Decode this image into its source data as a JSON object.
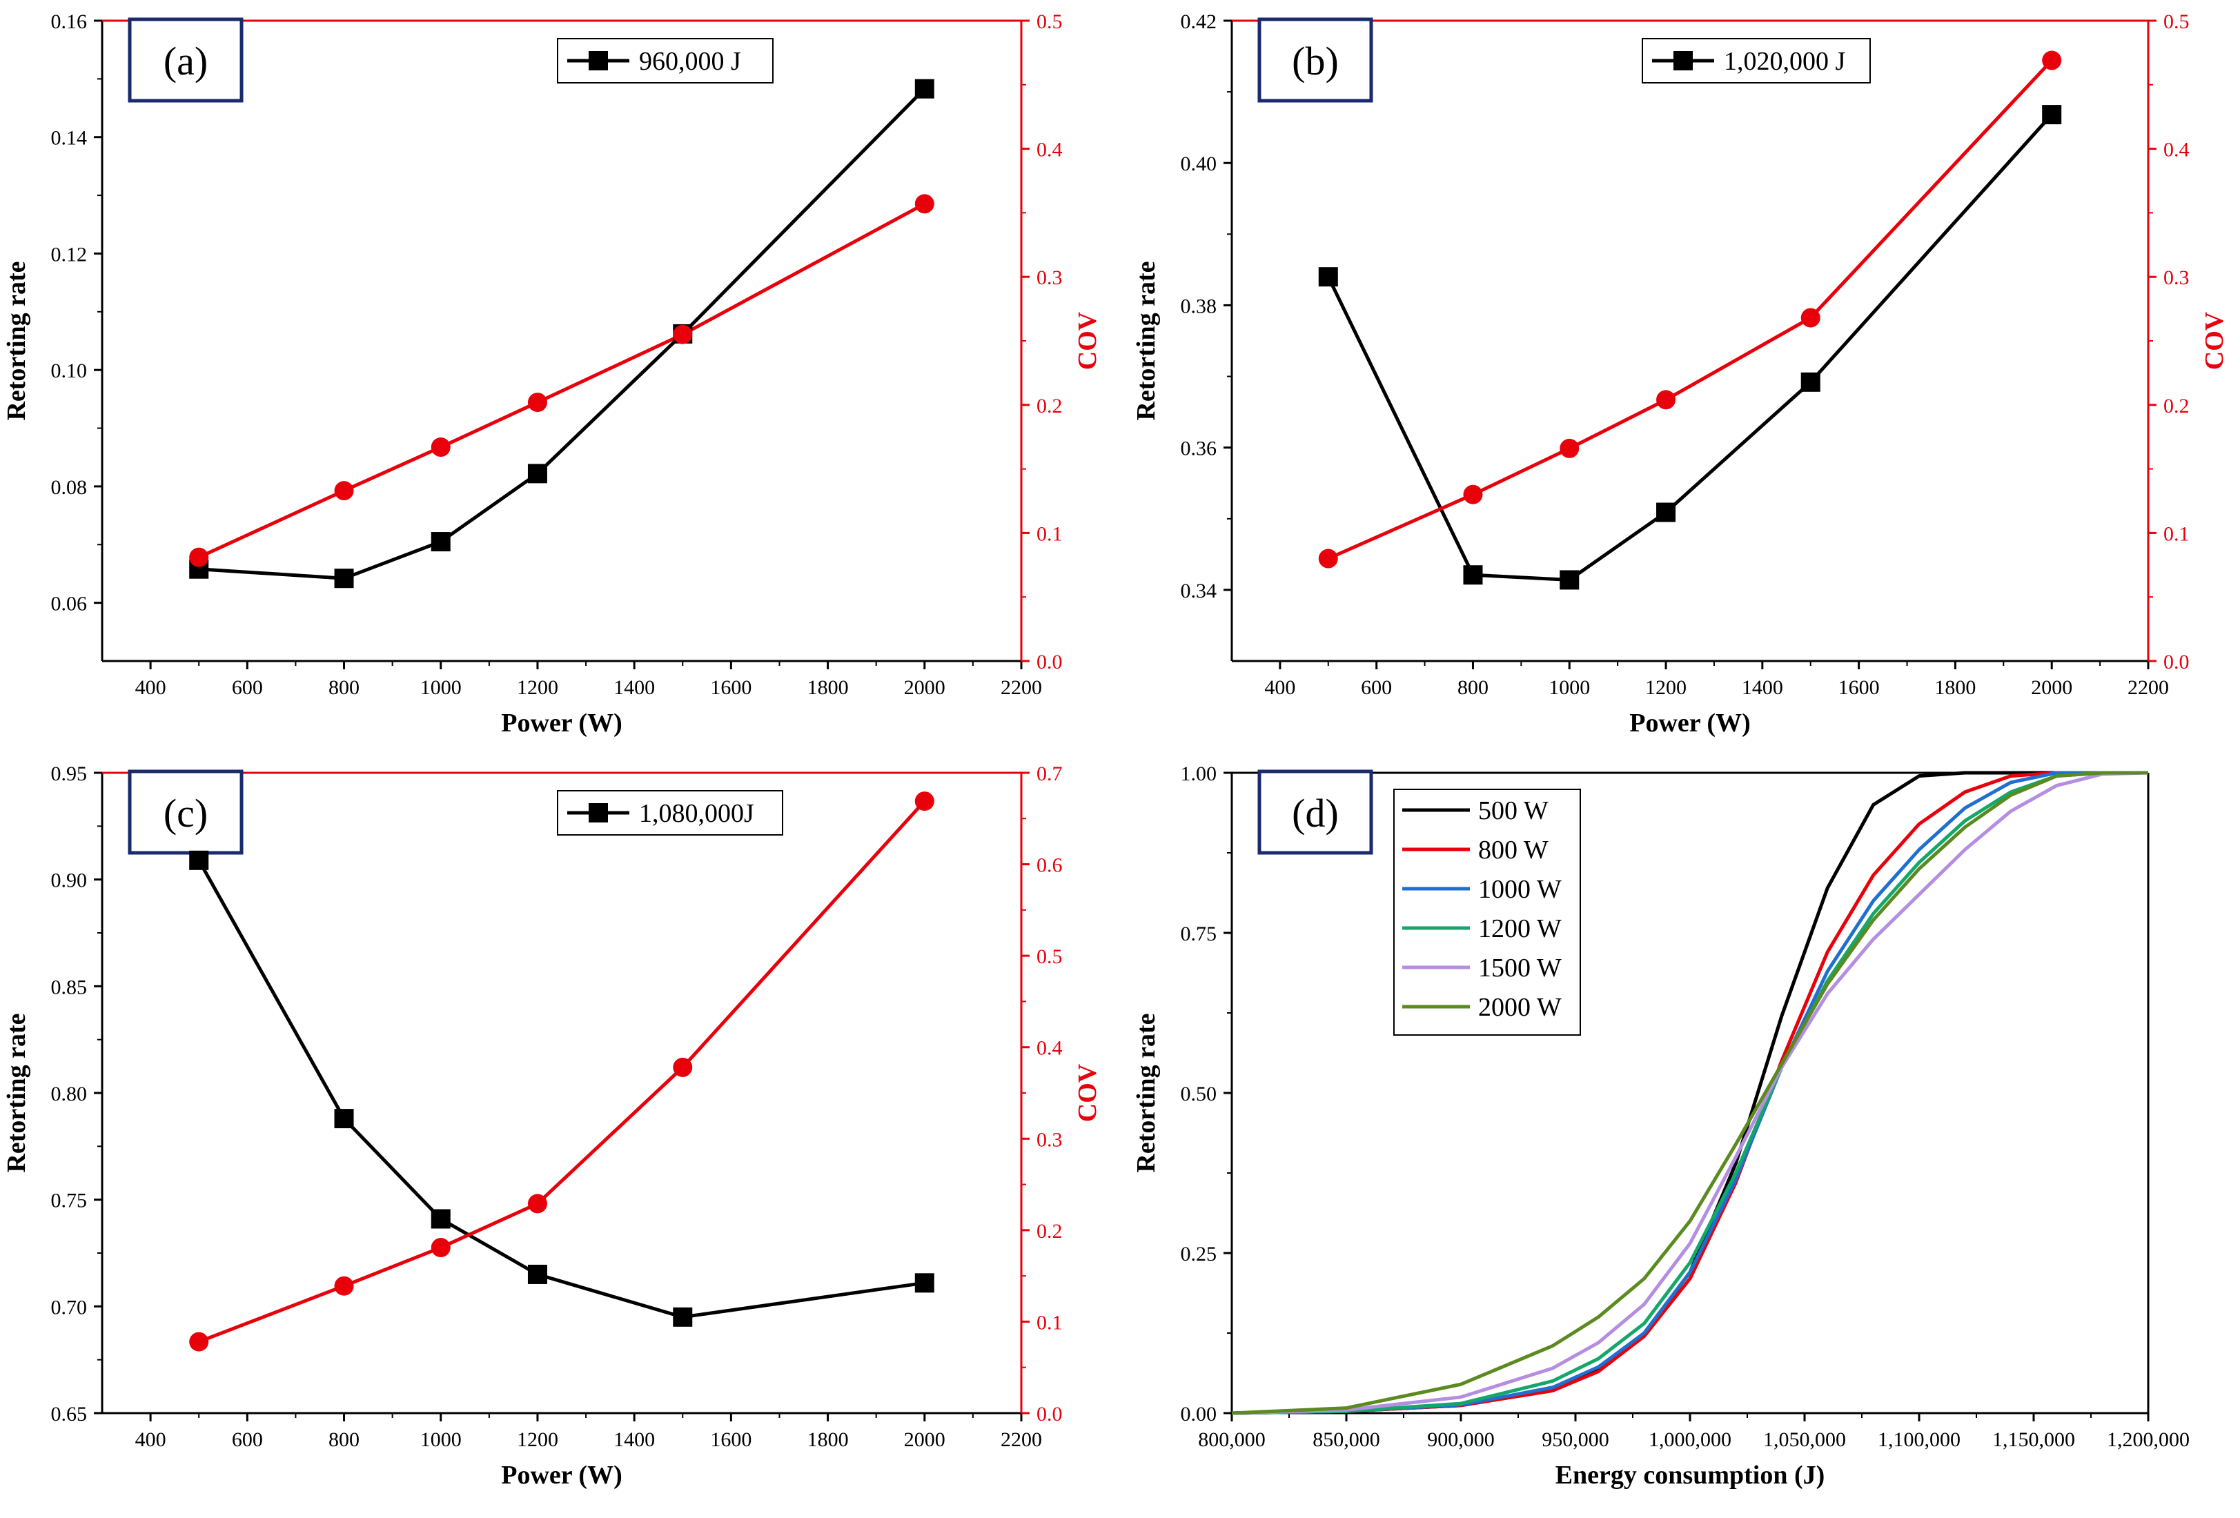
{
  "colors": {
    "black": "#000000",
    "red": "#e8000b",
    "tag_border": "#1a2a6c",
    "series_500": "#000000",
    "series_800": "#e8000b",
    "series_1000": "#1f6fd1",
    "series_1200": "#13a86a",
    "series_1500": "#b48ee0",
    "series_2000": "#5b8a1f"
  },
  "chart_data": [
    {
      "id": "a",
      "type": "line",
      "tag": "(a)",
      "xlabel": "Power (W)",
      "ylabel": "Retorting rate",
      "y2label": "COV",
      "xlim": [
        300,
        2200
      ],
      "xticks": [
        400,
        600,
        800,
        1000,
        1200,
        1400,
        1600,
        1800,
        2000,
        2200
      ],
      "xtick_labels": [
        "400",
        "600",
        "800",
        "1000",
        "1200",
        "1400",
        "1600",
        "1800",
        "2000",
        "2200"
      ],
      "ylim": [
        0.05,
        0.16
      ],
      "yticks": [
        0.06,
        0.08,
        0.1,
        0.12,
        0.14,
        0.16
      ],
      "ytick_labels": [
        "0.06",
        "0.08",
        "0.10",
        "0.12",
        "0.14",
        "0.16"
      ],
      "y2lim": [
        0.0,
        0.5
      ],
      "y2ticks": [
        0.0,
        0.1,
        0.2,
        0.3,
        0.4,
        0.5
      ],
      "y2tick_labels": [
        "0.0",
        "0.1",
        "0.2",
        "0.3",
        "0.4",
        "0.5"
      ],
      "legend_position": "top-center",
      "legend": "960,000 J",
      "x": [
        500,
        800,
        1000,
        1200,
        1500,
        2000
      ],
      "series": [
        {
          "name": "960,000 J",
          "axis": "left",
          "marker": "square",
          "values": [
            0.0658,
            0.0642,
            0.0705,
            0.0822,
            0.1062,
            0.1483
          ]
        },
        {
          "name": "COV",
          "axis": "right",
          "marker": "circle",
          "values": [
            0.081,
            0.133,
            0.167,
            0.202,
            0.255,
            0.357
          ]
        }
      ]
    },
    {
      "id": "b",
      "type": "line",
      "tag": "(b)",
      "xlabel": "Power (W)",
      "ylabel": "Retorting rate",
      "y2label": "COV",
      "xlim": [
        300,
        2200
      ],
      "xticks": [
        400,
        600,
        800,
        1000,
        1200,
        1400,
        1600,
        1800,
        2000,
        2200
      ],
      "xtick_labels": [
        "400",
        "600",
        "800",
        "1000",
        "1200",
        "1400",
        "1600",
        "1800",
        "2000",
        "2200"
      ],
      "ylim": [
        0.33,
        0.42
      ],
      "yticks": [
        0.34,
        0.36,
        0.38,
        0.4,
        0.42
      ],
      "ytick_labels": [
        "0.34",
        "0.36",
        "0.38",
        "0.40",
        "0.42"
      ],
      "y2lim": [
        0.0,
        0.5
      ],
      "y2ticks": [
        0.0,
        0.1,
        0.2,
        0.3,
        0.4,
        0.5
      ],
      "y2tick_labels": [
        "0.0",
        "0.1",
        "0.2",
        "0.3",
        "0.4",
        "0.5"
      ],
      "legend_position": "top-center",
      "legend": "1,020,000 J",
      "x": [
        500,
        800,
        1000,
        1200,
        1500,
        2000
      ],
      "series": [
        {
          "name": "1,020,000 J",
          "axis": "left",
          "marker": "square",
          "values": [
            0.384,
            0.3421,
            0.3414,
            0.3509,
            0.3692,
            0.4068
          ]
        },
        {
          "name": "COV",
          "axis": "right",
          "marker": "circle",
          "values": [
            0.08,
            0.13,
            0.166,
            0.204,
            0.268,
            0.469
          ]
        }
      ]
    },
    {
      "id": "c",
      "type": "line",
      "tag": "(c)",
      "xlabel": "Power (W)",
      "ylabel": "Retorting rate",
      "y2label": "COV",
      "xlim": [
        300,
        2200
      ],
      "xticks": [
        400,
        600,
        800,
        1000,
        1200,
        1400,
        1600,
        1800,
        2000,
        2200
      ],
      "xtick_labels": [
        "400",
        "600",
        "800",
        "1000",
        "1200",
        "1400",
        "1600",
        "1800",
        "2000",
        "2200"
      ],
      "ylim": [
        0.65,
        0.95
      ],
      "yticks": [
        0.65,
        0.7,
        0.75,
        0.8,
        0.85,
        0.9,
        0.95
      ],
      "ytick_labels": [
        "0.65",
        "0.70",
        "0.75",
        "0.80",
        "0.85",
        "0.90",
        "0.95"
      ],
      "y2lim": [
        0.0,
        0.7
      ],
      "y2ticks": [
        0.0,
        0.1,
        0.2,
        0.3,
        0.4,
        0.5,
        0.6,
        0.7
      ],
      "y2tick_labels": [
        "0.0",
        "0.1",
        "0.2",
        "0.3",
        "0.4",
        "0.5",
        "0.6",
        "0.7"
      ],
      "legend_position": "top-center",
      "legend": "1,080,000J",
      "x": [
        500,
        800,
        1000,
        1200,
        1500,
        2000
      ],
      "series": [
        {
          "name": "1,080,000J",
          "axis": "left",
          "marker": "square",
          "values": [
            0.909,
            0.788,
            0.741,
            0.715,
            0.695,
            0.711
          ]
        },
        {
          "name": "COV",
          "axis": "right",
          "marker": "circle",
          "values": [
            0.078,
            0.139,
            0.181,
            0.229,
            0.378,
            0.669
          ]
        }
      ]
    },
    {
      "id": "d",
      "type": "line",
      "tag": "(d)",
      "xlabel": "Energy consumption (J)",
      "ylabel": "Retorting rate",
      "xlim": [
        800000,
        1200000
      ],
      "xticks": [
        800000,
        850000,
        900000,
        950000,
        1000000,
        1050000,
        1100000,
        1150000,
        1200000
      ],
      "xtick_labels": [
        "800,000",
        "850,000",
        "900,000",
        "950,000",
        "1,000,000",
        "1,050,000",
        "1,100,000",
        "1,150,000",
        "1,200,000"
      ],
      "ylim": [
        0.0,
        1.0
      ],
      "yticks": [
        0.0,
        0.25,
        0.5,
        0.75,
        1.0
      ],
      "ytick_labels": [
        "0.00",
        "0.25",
        "0.50",
        "0.75",
        "1.00"
      ],
      "legend_position": "top-left",
      "x": [
        800000,
        850000,
        900000,
        940000,
        960000,
        980000,
        1000000,
        1020000,
        1040000,
        1060000,
        1080000,
        1100000,
        1120000,
        1140000,
        1160000,
        1180000,
        1200000
      ],
      "series": [
        {
          "name": "500 W",
          "color_key": "series_500",
          "values": [
            0.0,
            0.003,
            0.012,
            0.04,
            0.07,
            0.125,
            0.22,
            0.39,
            0.62,
            0.82,
            0.95,
            0.995,
            1.0,
            1.0,
            1.0,
            1.0,
            1.0
          ]
        },
        {
          "name": "800 W",
          "color_key": "series_800",
          "values": [
            0.0,
            0.003,
            0.012,
            0.035,
            0.065,
            0.12,
            0.21,
            0.36,
            0.55,
            0.72,
            0.84,
            0.92,
            0.97,
            0.995,
            1.0,
            1.0,
            1.0
          ]
        },
        {
          "name": "1000 W",
          "color_key": "series_1000",
          "values": [
            0.0,
            0.003,
            0.013,
            0.04,
            0.072,
            0.125,
            0.22,
            0.365,
            0.54,
            0.69,
            0.8,
            0.88,
            0.945,
            0.985,
            1.0,
            1.0,
            1.0
          ]
        },
        {
          "name": "1200 W",
          "color_key": "series_1200",
          "values": [
            0.0,
            0.003,
            0.015,
            0.05,
            0.085,
            0.14,
            0.235,
            0.375,
            0.54,
            0.675,
            0.78,
            0.86,
            0.925,
            0.97,
            0.995,
            1.0,
            1.0
          ]
        },
        {
          "name": "1500 W",
          "color_key": "series_1500",
          "values": [
            0.0,
            0.005,
            0.025,
            0.07,
            0.11,
            0.17,
            0.265,
            0.4,
            0.54,
            0.655,
            0.74,
            0.81,
            0.88,
            0.94,
            0.98,
            0.998,
            1.0
          ]
        },
        {
          "name": "2000 W",
          "color_key": "series_2000",
          "values": [
            0.0,
            0.008,
            0.045,
            0.105,
            0.15,
            0.21,
            0.3,
            0.42,
            0.545,
            0.67,
            0.77,
            0.85,
            0.915,
            0.965,
            0.995,
            1.0,
            1.0
          ]
        }
      ]
    }
  ]
}
